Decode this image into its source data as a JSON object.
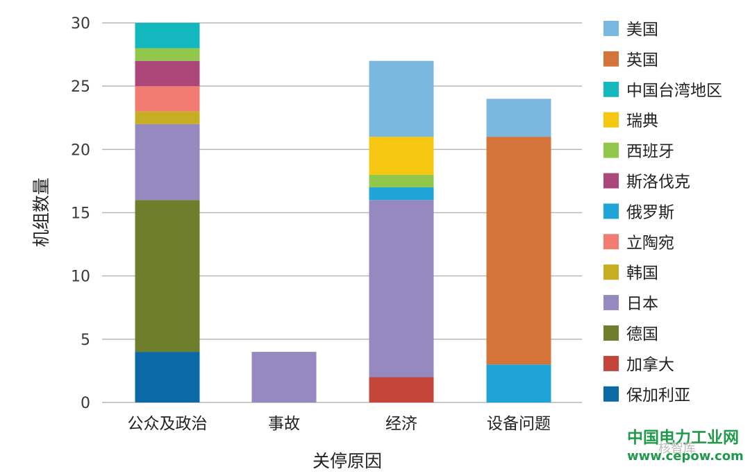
{
  "chart_data": {
    "type": "bar",
    "stacked": true,
    "categories": [
      "公众及政治",
      "事故",
      "经济",
      "设备问题"
    ],
    "xlabel": "关停原因",
    "ylabel": "机组数量",
    "ylim": [
      0,
      30
    ],
    "yticks": [
      0,
      5,
      10,
      15,
      20,
      25,
      30
    ],
    "grid": true,
    "legend_position": "right",
    "series": [
      {
        "name": "保加利亚",
        "color": "#0b6aa6",
        "values": [
          4,
          0,
          0,
          0
        ]
      },
      {
        "name": "加拿大",
        "color": "#c4463a",
        "values": [
          0,
          0,
          2,
          0
        ]
      },
      {
        "name": "德国",
        "color": "#6e7e2b",
        "values": [
          12,
          0,
          0,
          0
        ]
      },
      {
        "name": "日本",
        "color": "#9689bf",
        "values": [
          6,
          4,
          14,
          0
        ]
      },
      {
        "name": "韩国",
        "color": "#c7ad21",
        "values": [
          1,
          0,
          0,
          0
        ]
      },
      {
        "name": "立陶宛",
        "color": "#f27c72",
        "values": [
          2,
          0,
          0,
          0
        ]
      },
      {
        "name": "俄罗斯",
        "color": "#1ea4d6",
        "values": [
          0,
          0,
          1,
          3
        ]
      },
      {
        "name": "斯洛伐克",
        "color": "#ab4779",
        "values": [
          2,
          0,
          0,
          0
        ]
      },
      {
        "name": "西班牙",
        "color": "#91c84b",
        "values": [
          1,
          0,
          1,
          0
        ]
      },
      {
        "name": "瑞典",
        "color": "#f5c711",
        "values": [
          0,
          0,
          3,
          0
        ]
      },
      {
        "name": "中国台湾地区",
        "color": "#13b8be",
        "values": [
          2,
          0,
          0,
          0
        ]
      },
      {
        "name": "英国",
        "color": "#d4743b",
        "values": [
          0,
          0,
          0,
          18
        ]
      },
      {
        "name": "美国",
        "color": "#7bb8e0",
        "values": [
          0,
          0,
          6,
          3
        ]
      }
    ],
    "legend_order": [
      "美国",
      "英国",
      "中国台湾地区",
      "瑞典",
      "西班牙",
      "斯洛伐克",
      "俄罗斯",
      "立陶宛",
      "韩国",
      "日本",
      "德国",
      "加拿大",
      "保加利亚"
    ]
  },
  "watermark": {
    "line1": "中国电力工业网",
    "line2": "www.cepow.com",
    "sub": "核智库"
  }
}
